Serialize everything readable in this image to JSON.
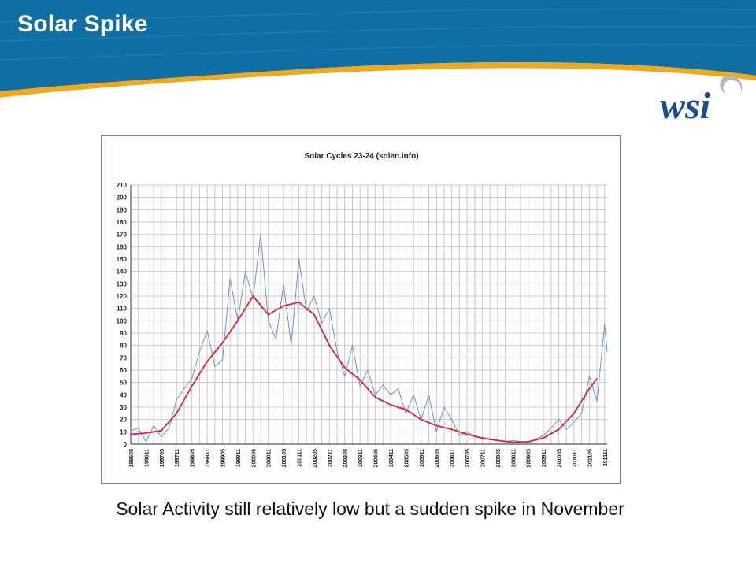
{
  "slide": {
    "title": "Solar Spike",
    "caption": "Solar Activity still relatively low but a sudden spike in November",
    "logo_text": "wsi",
    "colors": {
      "header": "#0f6fa3",
      "accent_stripe": "#f0a81c",
      "logo": "#1a4d8f"
    }
  },
  "chart_data": {
    "type": "line",
    "title": "Solar Cycles 23-24 (solen.info)",
    "xlabel": "",
    "ylabel": "",
    "ylim": [
      0,
      210
    ],
    "yticks": [
      0,
      10,
      20,
      30,
      40,
      50,
      60,
      70,
      80,
      90,
      100,
      110,
      120,
      130,
      140,
      150,
      160,
      170,
      180,
      190,
      200,
      210
    ],
    "x_tick_labels": [
      "199605",
      "199611",
      "199705",
      "199711",
      "199805",
      "199811",
      "199905",
      "199911",
      "200005",
      "200011",
      "200105",
      "200111",
      "200205",
      "200211",
      "200305",
      "200311",
      "200405",
      "200411",
      "200505",
      "200511",
      "200605",
      "200611",
      "200705",
      "200711",
      "200805",
      "200811",
      "200905",
      "200911",
      "201005",
      "201011",
      "201105",
      "201111"
    ],
    "grid": true,
    "legend": "none",
    "series": [
      {
        "color": "#6d8fd4",
        "x": [
          "1996-05",
          "1996-08",
          "1996-11",
          "1997-02",
          "1997-05",
          "1997-08",
          "1997-11",
          "1998-02",
          "1998-05",
          "1998-08",
          "1998-11",
          "1999-02",
          "1999-05",
          "1999-08",
          "1999-11",
          "2000-02",
          "2000-05",
          "2000-08",
          "2000-11",
          "2001-02",
          "2001-05",
          "2001-08",
          "2001-11",
          "2002-02",
          "2002-05",
          "2002-08",
          "2002-11",
          "2003-02",
          "2003-05",
          "2003-08",
          "2003-11",
          "2004-02",
          "2004-05",
          "2004-08",
          "2004-11",
          "2005-02",
          "2005-05",
          "2005-08",
          "2005-11",
          "2006-02",
          "2006-05",
          "2006-08",
          "2006-11",
          "2007-02",
          "2007-05",
          "2007-08",
          "2007-11",
          "2008-02",
          "2008-05",
          "2008-08",
          "2008-11",
          "2009-02",
          "2009-05",
          "2009-08",
          "2009-11",
          "2010-02",
          "2010-05",
          "2010-08",
          "2010-11",
          "2011-02",
          "2011-05",
          "2011-08",
          "2011-11",
          "2011-12"
        ],
        "values": [
          11,
          13,
          2,
          15,
          6,
          13,
          36,
          45,
          53,
          75,
          92,
          63,
          68,
          134,
          100,
          140,
          118,
          170,
          100,
          85,
          130,
          80,
          150,
          108,
          120,
          98,
          110,
          75,
          55,
          80,
          47,
          60,
          40,
          48,
          40,
          45,
          25,
          40,
          20,
          40,
          10,
          30,
          20,
          7,
          10,
          6,
          5,
          4,
          3,
          2,
          3,
          2,
          1,
          4,
          7,
          13,
          20,
          12,
          18,
          25,
          55,
          35,
          97,
          75
        ]
      },
      {
        "color": "#d9232d",
        "x": [
          "1996-05",
          "1996-11",
          "1997-05",
          "1997-11",
          "1998-05",
          "1998-11",
          "1999-05",
          "1999-11",
          "2000-05",
          "2000-11",
          "2001-05",
          "2001-11",
          "2002-05",
          "2002-11",
          "2003-05",
          "2003-11",
          "2004-05",
          "2004-11",
          "2005-05",
          "2005-11",
          "2006-05",
          "2006-11",
          "2007-05",
          "2007-11",
          "2008-05",
          "2008-11",
          "2009-05",
          "2009-11",
          "2010-05",
          "2010-11",
          "2011-05",
          "2011-08"
        ],
        "values": [
          8,
          9,
          11,
          25,
          47,
          67,
          82,
          100,
          120,
          105,
          112,
          115,
          105,
          80,
          62,
          52,
          38,
          32,
          28,
          20,
          15,
          12,
          8,
          5,
          3,
          1.5,
          2,
          5,
          12,
          25,
          45,
          53
        ]
      }
    ]
  }
}
